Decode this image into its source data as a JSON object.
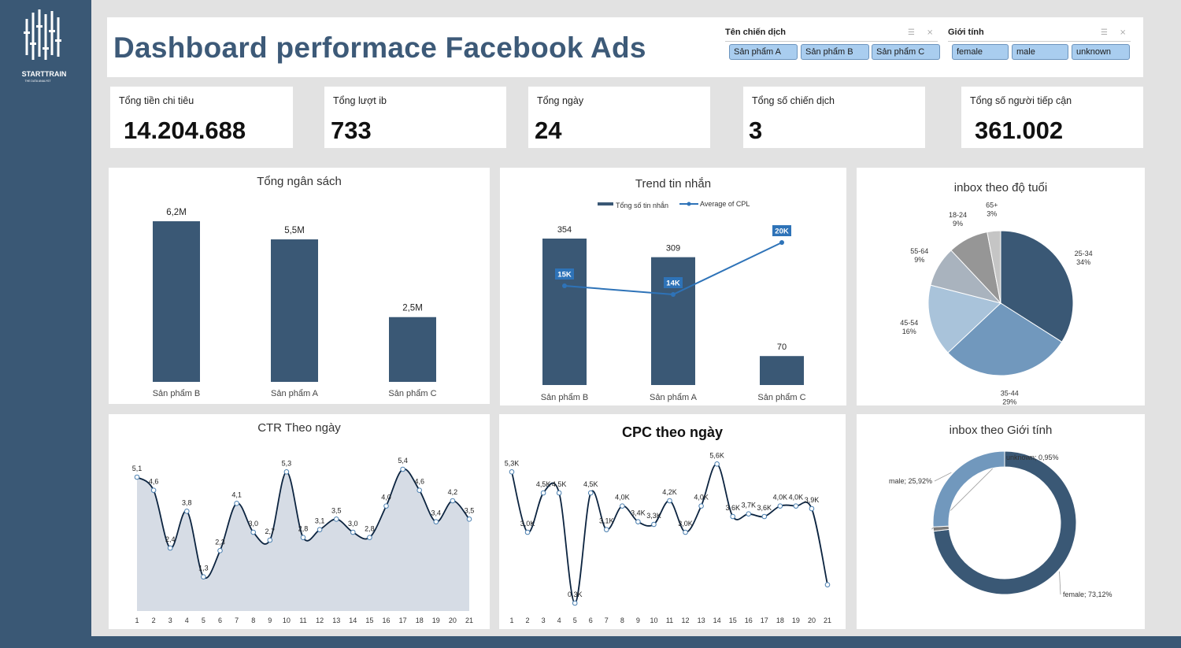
{
  "header": {
    "title": "Dashboard performace Facebook Ads"
  },
  "brand": {
    "name": "STARTTRAIN",
    "tagline": "THE DATA ANALYST"
  },
  "colors": {
    "navy": "#3a5875",
    "bar": "#3a5875",
    "accent_line": "#2e73b8",
    "chip": "#a9cdef",
    "area_fill": "#d6dce5"
  },
  "slicers": [
    {
      "title": "Tên chiến dịch",
      "items": [
        "Sản phẩm A",
        "Sản phẩm B",
        "Sản phẩm C"
      ]
    },
    {
      "title": "Giới tính",
      "items": [
        "female",
        "male",
        "unknown"
      ]
    }
  ],
  "kpis": [
    {
      "label": "Tổng tiền chi tiêu",
      "value": "14.204.688"
    },
    {
      "label": "Tổng lượt ib",
      "value": "733"
    },
    {
      "label": "Tổng ngày",
      "value": "24"
    },
    {
      "label": "Tổng số chiến dịch",
      "value": "3"
    },
    {
      "label": "Tổng số người tiếp cận",
      "value": "361.002"
    }
  ],
  "chart_data": [
    {
      "id": "budget",
      "type": "bar",
      "title": "Tổng ngân sách",
      "categories": [
        "Sản phẩm B",
        "Sản phẩm A",
        "Sản phẩm C"
      ],
      "values": [
        6.2,
        5.5,
        2.5
      ],
      "data_labels": [
        "6,2M",
        "5,5M",
        "2,5M"
      ],
      "ylim": [
        0,
        6.2
      ],
      "grid": false
    },
    {
      "id": "trend",
      "type": "bar",
      "title": "Trend tin nhắn",
      "categories": [
        "Sản phẩm B",
        "Sản phẩm A",
        "Sản phẩm C"
      ],
      "series": [
        {
          "name": "Tổng số tin nhắn",
          "values": [
            354,
            309,
            70
          ],
          "data_labels": [
            "354",
            "309",
            "70"
          ]
        },
        {
          "name": "Average of CPL",
          "type": "line",
          "values": [
            15,
            14,
            20
          ],
          "data_labels": [
            "15K",
            "14K",
            "20K"
          ]
        }
      ],
      "legend": "top",
      "grid": false
    },
    {
      "id": "age",
      "type": "pie",
      "title": "inbox theo độ tuổi",
      "slices": [
        {
          "label": "25-34",
          "value": 34,
          "pct": "34%",
          "color": "#3a5875"
        },
        {
          "label": "35-44",
          "value": 29,
          "pct": "29%",
          "color": "#7198bd"
        },
        {
          "label": "45-54",
          "value": 16,
          "pct": "16%",
          "color": "#a9c3da"
        },
        {
          "label": "55-64",
          "value": 9,
          "pct": "9%",
          "color": "#a9b3be"
        },
        {
          "label": "18-24",
          "value": 9,
          "pct": "9%",
          "color": "#969696"
        },
        {
          "label": "65+",
          "value": 3,
          "pct": "3%",
          "color": "#c5c5c5"
        }
      ]
    },
    {
      "id": "ctr",
      "type": "area",
      "title": "CTR Theo ngày",
      "x": [
        1,
        2,
        3,
        4,
        5,
        6,
        7,
        8,
        9,
        10,
        11,
        12,
        13,
        14,
        15,
        16,
        17,
        18,
        19,
        20,
        21
      ],
      "values": [
        5.1,
        4.6,
        2.4,
        3.8,
        1.3,
        2.3,
        4.1,
        3.0,
        2.7,
        5.3,
        2.8,
        3.1,
        3.5,
        3.0,
        2.8,
        4.0,
        5.4,
        4.6,
        3.4,
        4.2,
        3.5
      ],
      "data_labels": [
        "5,1",
        "4,6",
        "2,4",
        "3,8",
        "1,3",
        "2,3",
        "4,1",
        "3,0",
        "2,7",
        "5,3",
        "2,8",
        "3,1",
        "3,5",
        "3,0",
        "2,8",
        "4,0",
        "5,4",
        "4,6",
        "3,4",
        "4,2",
        "3,5"
      ],
      "ylim": [
        0,
        6
      ],
      "grid": false
    },
    {
      "id": "cpc",
      "type": "line",
      "title": "CPC theo ngày",
      "x": [
        1,
        2,
        3,
        4,
        5,
        6,
        7,
        8,
        9,
        10,
        11,
        12,
        13,
        14,
        15,
        16,
        17,
        18,
        19,
        20,
        21
      ],
      "values": [
        5.3,
        3.0,
        4.5,
        4.5,
        0.3,
        4.5,
        3.1,
        4.0,
        3.4,
        3.3,
        4.2,
        3.0,
        4.0,
        5.6,
        3.6,
        3.7,
        3.6,
        4.0,
        4.0,
        3.9,
        1.0
      ],
      "data_labels": [
        "5,3K",
        "3,0K",
        "4,5K",
        "4,5K",
        "0,3K",
        "4,5K",
        "3,1K",
        "4,0K",
        "3,4K",
        "3,3K",
        "4,2K",
        "3,0K",
        "4,0K",
        "5,6K",
        "3,6K",
        "3,7K",
        "3,6K",
        "4,0K",
        "4,0K",
        "3,9K",
        ""
      ],
      "ylim": [
        0,
        6
      ],
      "grid": false
    },
    {
      "id": "gender",
      "type": "pie",
      "title": "inbox theo Giới tính",
      "slices": [
        {
          "label": "female",
          "value": 73.12,
          "pct": "female; 73,12%",
          "color": "#3a5875"
        },
        {
          "label": "unknown",
          "value": 0.95,
          "pct": "unknown; 0,95%",
          "color": "#7a7a7a"
        },
        {
          "label": "male",
          "value": 25.92,
          "pct": "male; 25,92%",
          "color": "#7198bd"
        }
      ]
    }
  ]
}
